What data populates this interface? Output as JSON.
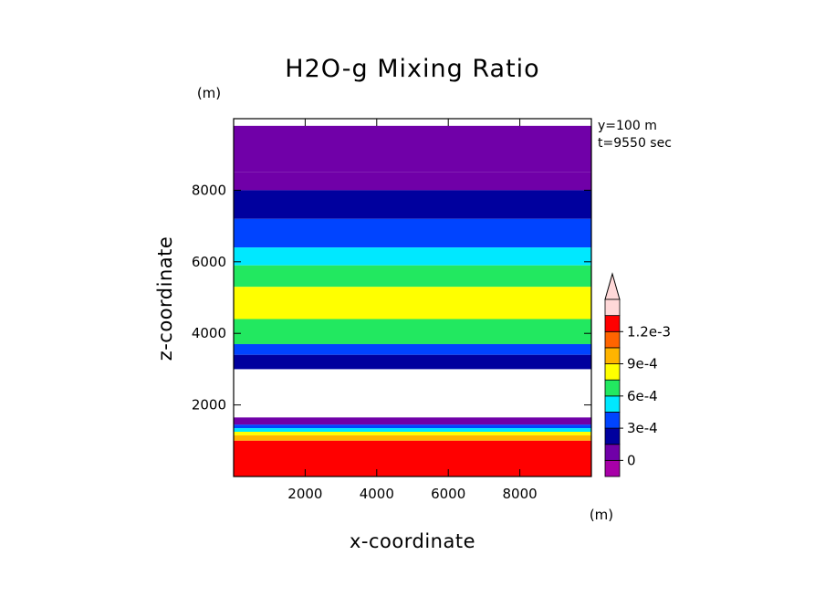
{
  "chart_data": {
    "type": "heatmap",
    "title": "H2O-g Mixing Ratio",
    "xlabel": "x-coordinate",
    "ylabel": "z-coordinate",
    "x_unit": "(m)",
    "y_unit": "(m)",
    "xlim": [
      0,
      10000
    ],
    "ylim": [
      0,
      10000
    ],
    "x_ticks": [
      2000,
      4000,
      6000,
      8000
    ],
    "y_ticks": [
      2000,
      4000,
      6000,
      8000
    ],
    "annotations": [
      "y=100 m",
      "t=9550 sec"
    ],
    "colorbar": {
      "labels": [
        "1.2e-3",
        "9e-4",
        "6e-4",
        "3e-4",
        "0"
      ],
      "label_values": [
        0.0012,
        0.0009,
        0.0006,
        0.0003,
        0
      ],
      "levels": [
        0,
        0.00015,
        0.0003,
        0.00045,
        0.0006,
        0.00075,
        0.0009,
        0.00105,
        0.0012
      ],
      "colors": [
        "#a800a8",
        "#7000a8",
        "#00009e",
        "#0044ff",
        "#00e8ff",
        "#22e860",
        "#ffff00",
        "#ffb400",
        "#ff6400",
        "#ff0000",
        "#ffd8d8"
      ],
      "extend": "max"
    },
    "layers": [
      {
        "z0": 9800,
        "z1": 8500,
        "value": 3e-05
      },
      {
        "z0": 8500,
        "z1": 8000,
        "value": 0.0001
      },
      {
        "z0": 8000,
        "z1": 7200,
        "value": 0.00022
      },
      {
        "z0": 7200,
        "z1": 6400,
        "value": 0.00036
      },
      {
        "z0": 6400,
        "z1": 5900,
        "value": 0.0005
      },
      {
        "z0": 5900,
        "z1": 5300,
        "value": 0.00066
      },
      {
        "z0": 5300,
        "z1": 4400,
        "value": 0.00083
      },
      {
        "z0": 4400,
        "z1": 3700,
        "value": 0.00068
      },
      {
        "z0": 3700,
        "z1": 3400,
        "value": 0.0004
      },
      {
        "z0": 3400,
        "z1": 3000,
        "value": 0.0002
      },
      {
        "z0": 3000,
        "z1": 1650,
        "value": null
      },
      {
        "z0": 1650,
        "z1": 1450,
        "value": 0.0001
      },
      {
        "z0": 1450,
        "z1": 1350,
        "value": 0.0003
      },
      {
        "z0": 1350,
        "z1": 1250,
        "value": 0.00055
      },
      {
        "z0": 1250,
        "z1": 1150,
        "value": 0.0008
      },
      {
        "z0": 1150,
        "z1": 1000,
        "value": 0.001
      },
      {
        "z0": 1000,
        "z1": 0,
        "value": 0.0013
      }
    ]
  }
}
